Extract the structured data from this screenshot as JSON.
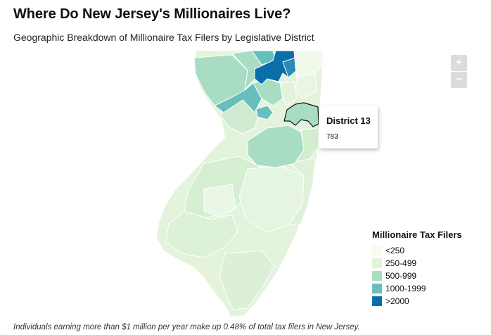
{
  "header": {
    "title": "Where Do New Jersey's Millionaires Live?",
    "subtitle": "Geographic Breakdown of Millionaire Tax Filers by Legislative District"
  },
  "zoom_controls": {
    "zoom_in_label": "+",
    "zoom_out_label": "−"
  },
  "tooltip": {
    "title": "District 13",
    "value": "783"
  },
  "legend": {
    "title": "Millionaire Tax Filers",
    "items": [
      {
        "label": "<250",
        "color": "#f7fcf0"
      },
      {
        "label": "250-499",
        "color": "#e0f3db"
      },
      {
        "label": "500-999",
        "color": "#a8ddc4"
      },
      {
        "label": "1000-1999",
        "color": "#66bfbd"
      },
      {
        "label": ">2000",
        "color": "#0a6fa8"
      }
    ]
  },
  "footnote": "Individuals earning more than $1 million per year make up 0.48% of total tax filers in New Jersey."
}
